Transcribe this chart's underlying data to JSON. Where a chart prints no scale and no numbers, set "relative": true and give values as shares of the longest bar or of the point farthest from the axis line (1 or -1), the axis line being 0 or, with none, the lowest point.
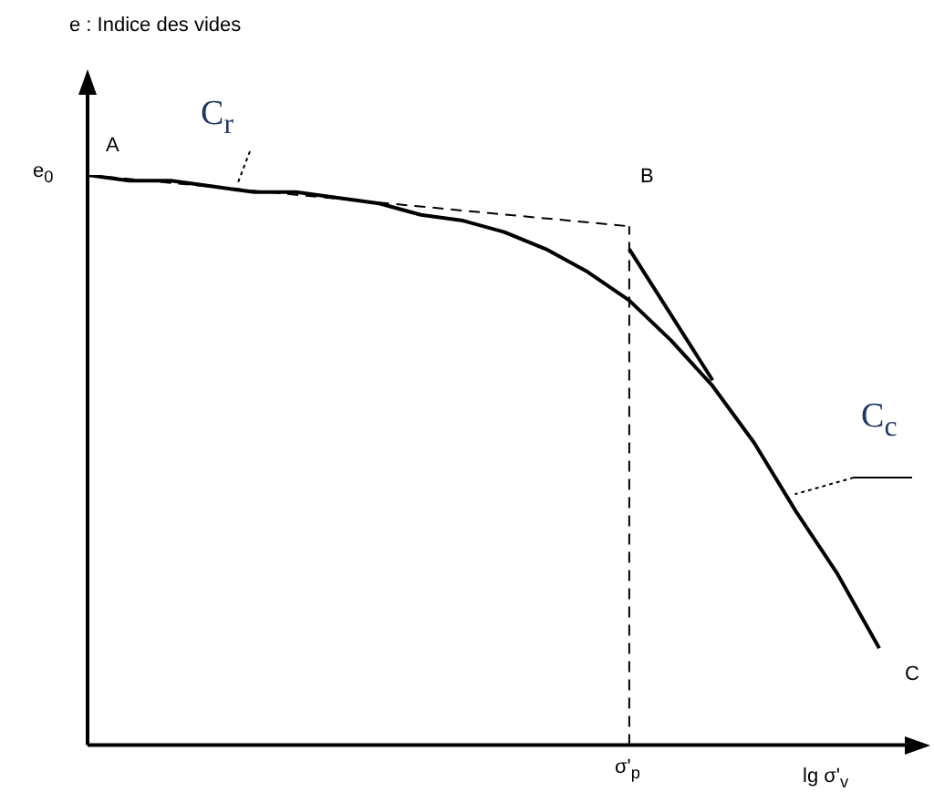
{
  "chart_data": {
    "type": "line",
    "relative": true,
    "xlabel": "lg σ'$_{v}$",
    "categories": [
      null,
      null,
      null,
      null,
      null,
      null,
      null,
      null,
      null,
      null,
      null,
      null,
      null,
      null,
      null,
      null,
      null,
      null,
      null,
      null
    ],
    "series": [
      {
        "color": "#000000",
        "values": [
          1,
          0.99,
          0.99,
          0.98,
          0.97,
          0.97,
          0.96,
          0.95,
          0.93,
          0.92,
          0.9,
          0.87,
          0.83,
          0.78,
          0.71,
          0.63,
          0.53,
          0.41,
          0.3,
          0.17
        ]
      },
      {
        "color": "#000000",
        "line_style": "dashed",
        "values": [
          1,
          null,
          null,
          null,
          null,
          null,
          null,
          null,
          null,
          null,
          null,
          null,
          null,
          0.91,
          null,
          null,
          null,
          null,
          null,
          null
        ]
      },
      {
        "color": "#000000",
        "values": [
          null,
          null,
          null,
          null,
          null,
          null,
          null,
          null,
          null,
          null,
          null,
          null,
          null,
          0.87,
          null,
          0.64,
          null,
          null,
          null,
          null
        ]
      }
    ],
    "ref_lines": [
      {
        "axis": "x",
        "label": "σ'$_{p}$",
        "line_style": "dashed",
        "color": "#000000"
      }
    ],
    "annotations": [
      "e$_{0}$",
      "A",
      "B",
      "C",
      "C$_{r}$",
      "C$_{c}$",
      "e : Indice des vides"
    ],
    "legend": false,
    "grid": false,
    "marker": "none",
    "line_style": "solid",
    "tick_labels": "x"
  }
}
